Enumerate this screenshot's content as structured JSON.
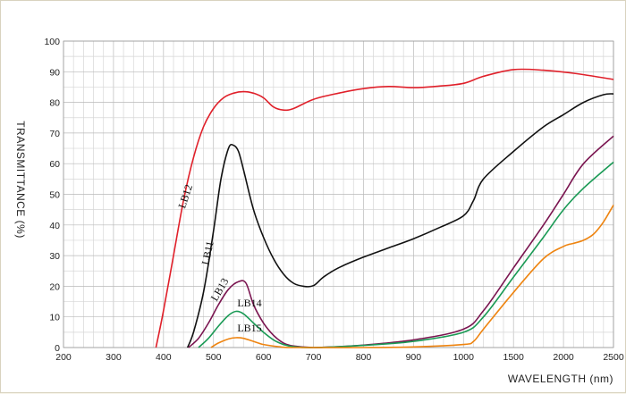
{
  "chart_data": {
    "type": "line",
    "xlabel": "WAVELENGTH (nm)",
    "ylabel": "TRANSMITTANCE (%)",
    "x_ticks": [
      "200",
      "300",
      "400",
      "500",
      "600",
      "700",
      "800",
      "900",
      "1000",
      "1500",
      "2000",
      "2500"
    ],
    "y_ticks": [
      "0",
      "10",
      "20",
      "30",
      "40",
      "50",
      "60",
      "70",
      "80",
      "90",
      "100"
    ],
    "ylim": [
      0,
      100
    ],
    "grid": true,
    "series": [
      {
        "name": "LB12",
        "color": "#e0202a",
        "points": [
          [
            385,
            0
          ],
          [
            400,
            12
          ],
          [
            420,
            30
          ],
          [
            440,
            48
          ],
          [
            460,
            62
          ],
          [
            480,
            72
          ],
          [
            500,
            78
          ],
          [
            520,
            81.5
          ],
          [
            540,
            83
          ],
          [
            560,
            83.5
          ],
          [
            580,
            83
          ],
          [
            600,
            81.5
          ],
          [
            620,
            78.5
          ],
          [
            640,
            77.5
          ],
          [
            660,
            78
          ],
          [
            700,
            81
          ],
          [
            750,
            83
          ],
          [
            800,
            84.5
          ],
          [
            850,
            85.2
          ],
          [
            900,
            84.8
          ],
          [
            950,
            85.3
          ],
          [
            1000,
            86.2
          ],
          [
            1200,
            88.5
          ],
          [
            1500,
            90.7
          ],
          [
            1800,
            90.5
          ],
          [
            2100,
            89.5
          ],
          [
            2500,
            87.5
          ]
        ]
      },
      {
        "name": "LB11",
        "color": "#111111",
        "points": [
          [
            448,
            0
          ],
          [
            460,
            5
          ],
          [
            480,
            18
          ],
          [
            500,
            38
          ],
          [
            515,
            55
          ],
          [
            530,
            65
          ],
          [
            540,
            66
          ],
          [
            550,
            64
          ],
          [
            560,
            58
          ],
          [
            580,
            45
          ],
          [
            600,
            36
          ],
          [
            620,
            29
          ],
          [
            640,
            24
          ],
          [
            660,
            21
          ],
          [
            680,
            20
          ],
          [
            700,
            20.2
          ],
          [
            720,
            23
          ],
          [
            750,
            26
          ],
          [
            800,
            29.5
          ],
          [
            850,
            32.5
          ],
          [
            900,
            35.5
          ],
          [
            950,
            39
          ],
          [
            1000,
            43
          ],
          [
            1100,
            48
          ],
          [
            1200,
            55
          ],
          [
            1500,
            64
          ],
          [
            1800,
            72
          ],
          [
            2000,
            76
          ],
          [
            2200,
            80
          ],
          [
            2400,
            82.5
          ],
          [
            2500,
            82.8
          ]
        ]
      },
      {
        "name": "LB13",
        "color": "#7a1550",
        "points": [
          [
            450,
            0
          ],
          [
            470,
            3
          ],
          [
            490,
            8
          ],
          [
            510,
            14
          ],
          [
            530,
            19
          ],
          [
            550,
            21.5
          ],
          [
            565,
            21
          ],
          [
            580,
            14
          ],
          [
            600,
            8
          ],
          [
            620,
            4
          ],
          [
            640,
            1.5
          ],
          [
            660,
            0.5
          ],
          [
            700,
            0
          ],
          [
            750,
            0.3
          ],
          [
            800,
            0.8
          ],
          [
            900,
            2.5
          ],
          [
            1000,
            6
          ],
          [
            1200,
            12
          ],
          [
            1500,
            26
          ],
          [
            1800,
            40
          ],
          [
            2000,
            50
          ],
          [
            2200,
            60
          ],
          [
            2500,
            69
          ]
        ]
      },
      {
        "name": "LB14",
        "color": "#1a9a55",
        "points": [
          [
            470,
            0
          ],
          [
            490,
            3
          ],
          [
            510,
            7
          ],
          [
            530,
            10.5
          ],
          [
            545,
            11.8
          ],
          [
            560,
            11
          ],
          [
            580,
            8
          ],
          [
            600,
            5
          ],
          [
            620,
            2.5
          ],
          [
            640,
            1
          ],
          [
            660,
            0.3
          ],
          [
            700,
            0
          ],
          [
            800,
            0.7
          ],
          [
            900,
            2
          ],
          [
            1000,
            5
          ],
          [
            1200,
            10
          ],
          [
            1500,
            23
          ],
          [
            1800,
            36
          ],
          [
            2000,
            45
          ],
          [
            2200,
            52
          ],
          [
            2500,
            60.5
          ]
        ]
      },
      {
        "name": "LB15",
        "color": "#ee8410",
        "points": [
          [
            495,
            0
          ],
          [
            510,
            1.5
          ],
          [
            530,
            2.8
          ],
          [
            545,
            3.2
          ],
          [
            560,
            3
          ],
          [
            580,
            2
          ],
          [
            600,
            1
          ],
          [
            630,
            0.3
          ],
          [
            660,
            0
          ],
          [
            800,
            0
          ],
          [
            900,
            0.2
          ],
          [
            1000,
            1
          ],
          [
            1100,
            2
          ],
          [
            1200,
            6
          ],
          [
            1500,
            18
          ],
          [
            1800,
            29
          ],
          [
            2000,
            33
          ],
          [
            2100,
            34
          ],
          [
            2200,
            35
          ],
          [
            2300,
            37
          ],
          [
            2400,
            41
          ],
          [
            2500,
            46.5
          ]
        ]
      }
    ]
  }
}
